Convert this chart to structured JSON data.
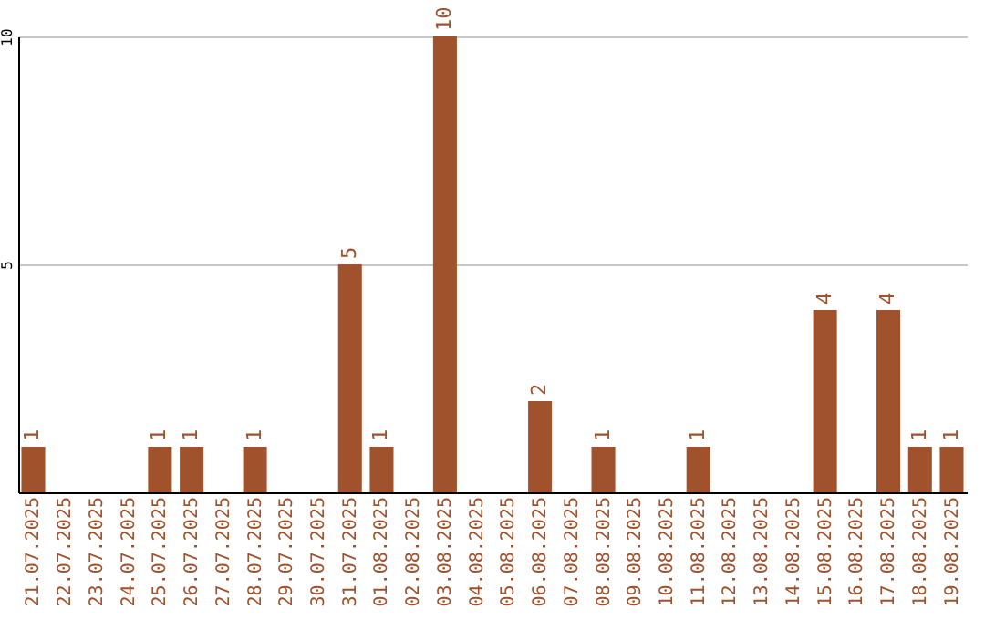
{
  "chart_data": {
    "type": "bar",
    "categories": [
      "21.07.2025",
      "22.07.2025",
      "23.07.2025",
      "24.07.2025",
      "25.07.2025",
      "26.07.2025",
      "27.07.2025",
      "28.07.2025",
      "29.07.2025",
      "30.07.2025",
      "31.07.2025",
      "01.08.2025",
      "02.08.2025",
      "03.08.2025",
      "04.08.2025",
      "05.08.2025",
      "06.08.2025",
      "07.08.2025",
      "08.08.2025",
      "09.08.2025",
      "10.08.2025",
      "11.08.2025",
      "12.08.2025",
      "13.08.2025",
      "14.08.2025",
      "15.08.2025",
      "16.08.2025",
      "17.08.2025",
      "18.08.2025",
      "19.08.2025"
    ],
    "values": [
      1,
      null,
      null,
      null,
      1,
      1,
      null,
      1,
      null,
      null,
      5,
      1,
      null,
      10,
      null,
      null,
      2,
      null,
      1,
      null,
      null,
      1,
      null,
      null,
      null,
      4,
      null,
      4,
      1,
      1
    ],
    "color": "#a0522d",
    "ylim": [
      0,
      10
    ],
    "yticks": [
      {
        "value": 0,
        "label": null
      },
      5,
      10
    ],
    "grid": "y",
    "data_labels": true
  }
}
